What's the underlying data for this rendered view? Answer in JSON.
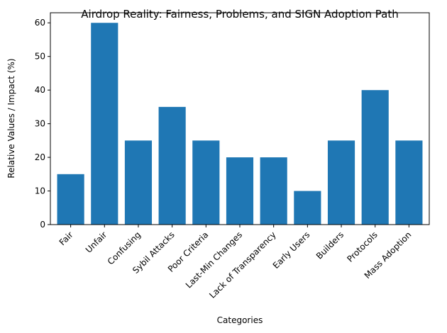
{
  "chart_data": {
    "type": "bar",
    "title": "Airdrop Reality: Fairness, Problems, and SIGN Adoption Path",
    "xlabel": "Categories",
    "ylabel": "Relative Values / Impact (%)",
    "categories": [
      "Fair",
      "Unfair",
      "Confusing",
      "Sybil Attacks",
      "Poor Criteria",
      "Last-Min Changes",
      "Lack of Transparency",
      "Early Users",
      "Builders",
      "Protocols",
      "Mass Adoption"
    ],
    "values": [
      15,
      60,
      25,
      35,
      25,
      20,
      20,
      10,
      25,
      40,
      25
    ],
    "ylim": [
      0,
      63
    ],
    "yticks": [
      0,
      10,
      20,
      30,
      40,
      50,
      60
    ],
    "bar_color": "#1f77b4",
    "grid": false
  }
}
